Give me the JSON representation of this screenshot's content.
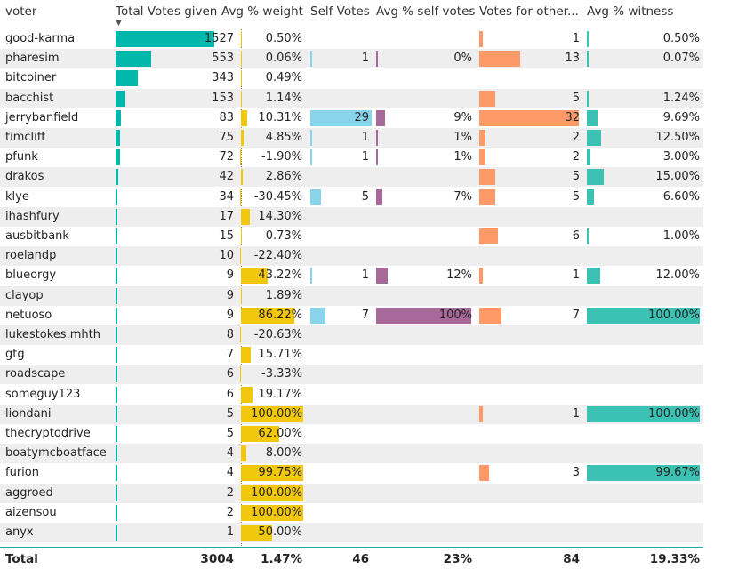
{
  "headers": [
    "voter",
    "Total Votes given",
    "Avg % weight",
    "Self Votes",
    "Avg % self votes",
    "Votes for other...",
    "Avg % witness"
  ],
  "sort_indicator": "▼",
  "colors": {
    "votes": "#01b8aa",
    "weight": "#f2c80f",
    "self": "#8ad4eb",
    "selfpct": "#a66999",
    "other": "#fd9a68",
    "witness": "#3cc1b5",
    "stripe": "#eeeeee",
    "total_line": "#1ea7a3"
  },
  "scales": {
    "votes_max": 1527,
    "weight_max": 100,
    "self_max": 29,
    "selfpct_max": 100,
    "other_max": 32,
    "witness_max": 100
  },
  "rows": [
    {
      "voter": "good-karma",
      "votes": "1527",
      "weight": "0.50%",
      "self": "",
      "selfpct": "",
      "other": "1",
      "witness": "0.50%",
      "v": {
        "votes": 1527,
        "weight": 0.5,
        "self": null,
        "selfpct": null,
        "other": 1,
        "witness": 0.5
      }
    },
    {
      "voter": "pharesim",
      "votes": "553",
      "weight": "0.06%",
      "self": "1",
      "selfpct": "0%",
      "other": "13",
      "witness": "0.07%",
      "v": {
        "votes": 553,
        "weight": 0.06,
        "self": 1,
        "selfpct": 0,
        "other": 13,
        "witness": 0.07
      }
    },
    {
      "voter": "bitcoiner",
      "votes": "343",
      "weight": "0.49%",
      "self": "",
      "selfpct": "",
      "other": "",
      "witness": "",
      "v": {
        "votes": 343,
        "weight": 0.49,
        "self": null,
        "selfpct": null,
        "other": null,
        "witness": null
      }
    },
    {
      "voter": "bacchist",
      "votes": "153",
      "weight": "1.14%",
      "self": "",
      "selfpct": "",
      "other": "5",
      "witness": "1.24%",
      "v": {
        "votes": 153,
        "weight": 1.14,
        "self": null,
        "selfpct": null,
        "other": 5,
        "witness": 1.24
      }
    },
    {
      "voter": "jerrybanfield",
      "votes": "83",
      "weight": "10.31%",
      "self": "29",
      "selfpct": "9%",
      "other": "32",
      "witness": "9.69%",
      "v": {
        "votes": 83,
        "weight": 10.31,
        "self": 29,
        "selfpct": 9,
        "other": 32,
        "witness": 9.69
      }
    },
    {
      "voter": "timcliff",
      "votes": "75",
      "weight": "4.85%",
      "self": "1",
      "selfpct": "1%",
      "other": "2",
      "witness": "12.50%",
      "v": {
        "votes": 75,
        "weight": 4.85,
        "self": 1,
        "selfpct": 1,
        "other": 2,
        "witness": 12.5
      }
    },
    {
      "voter": "pfunk",
      "votes": "72",
      "weight": "-1.90%",
      "self": "1",
      "selfpct": "1%",
      "other": "2",
      "witness": "3.00%",
      "v": {
        "votes": 72,
        "weight": -1.9,
        "self": 1,
        "selfpct": 1,
        "other": 2,
        "witness": 3.0
      }
    },
    {
      "voter": "drakos",
      "votes": "42",
      "weight": "2.86%",
      "self": "",
      "selfpct": "",
      "other": "5",
      "witness": "15.00%",
      "v": {
        "votes": 42,
        "weight": 2.86,
        "self": null,
        "selfpct": null,
        "other": 5,
        "witness": 15.0
      }
    },
    {
      "voter": "klye",
      "votes": "34",
      "weight": "-30.45%",
      "self": "5",
      "selfpct": "7%",
      "other": "5",
      "witness": "6.60%",
      "v": {
        "votes": 34,
        "weight": -30.45,
        "self": 5,
        "selfpct": 7,
        "other": 5,
        "witness": 6.6
      }
    },
    {
      "voter": "ihashfury",
      "votes": "17",
      "weight": "14.30%",
      "self": "",
      "selfpct": "",
      "other": "",
      "witness": "",
      "v": {
        "votes": 17,
        "weight": 14.3,
        "self": null,
        "selfpct": null,
        "other": null,
        "witness": null
      }
    },
    {
      "voter": "ausbitbank",
      "votes": "15",
      "weight": "0.73%",
      "self": "",
      "selfpct": "",
      "other": "6",
      "witness": "1.00%",
      "v": {
        "votes": 15,
        "weight": 0.73,
        "self": null,
        "selfpct": null,
        "other": 6,
        "witness": 1.0
      }
    },
    {
      "voter": "roelandp",
      "votes": "10",
      "weight": "-22.40%",
      "self": "",
      "selfpct": "",
      "other": "",
      "witness": "",
      "v": {
        "votes": 10,
        "weight": -22.4,
        "self": null,
        "selfpct": null,
        "other": null,
        "witness": null
      }
    },
    {
      "voter": "blueorgy",
      "votes": "9",
      "weight": "43.22%",
      "self": "1",
      "selfpct": "12%",
      "other": "1",
      "witness": "12.00%",
      "v": {
        "votes": 9,
        "weight": 43.22,
        "self": 1,
        "selfpct": 12,
        "other": 1,
        "witness": 12.0
      }
    },
    {
      "voter": "clayop",
      "votes": "9",
      "weight": "1.89%",
      "self": "",
      "selfpct": "",
      "other": "",
      "witness": "",
      "v": {
        "votes": 9,
        "weight": 1.89,
        "self": null,
        "selfpct": null,
        "other": null,
        "witness": null
      }
    },
    {
      "voter": "netuoso",
      "votes": "9",
      "weight": "86.22%",
      "self": "7",
      "selfpct": "100%",
      "other": "7",
      "witness": "100.00%",
      "v": {
        "votes": 9,
        "weight": 86.22,
        "self": 7,
        "selfpct": 100,
        "other": 7,
        "witness": 100.0
      }
    },
    {
      "voter": "lukestokes.mhth",
      "votes": "8",
      "weight": "-20.63%",
      "self": "",
      "selfpct": "",
      "other": "",
      "witness": "",
      "v": {
        "votes": 8,
        "weight": -20.63,
        "self": null,
        "selfpct": null,
        "other": null,
        "witness": null
      }
    },
    {
      "voter": "gtg",
      "votes": "7",
      "weight": "15.71%",
      "self": "",
      "selfpct": "",
      "other": "",
      "witness": "",
      "v": {
        "votes": 7,
        "weight": 15.71,
        "self": null,
        "selfpct": null,
        "other": null,
        "witness": null
      }
    },
    {
      "voter": "roadscape",
      "votes": "6",
      "weight": "-3.33%",
      "self": "",
      "selfpct": "",
      "other": "",
      "witness": "",
      "v": {
        "votes": 6,
        "weight": -3.33,
        "self": null,
        "selfpct": null,
        "other": null,
        "witness": null
      }
    },
    {
      "voter": "someguy123",
      "votes": "6",
      "weight": "19.17%",
      "self": "",
      "selfpct": "",
      "other": "",
      "witness": "",
      "v": {
        "votes": 6,
        "weight": 19.17,
        "self": null,
        "selfpct": null,
        "other": null,
        "witness": null
      }
    },
    {
      "voter": "liondani",
      "votes": "5",
      "weight": "100.00%",
      "self": "",
      "selfpct": "",
      "other": "1",
      "witness": "100.00%",
      "v": {
        "votes": 5,
        "weight": 100.0,
        "self": null,
        "selfpct": null,
        "other": 1,
        "witness": 100.0
      }
    },
    {
      "voter": "thecryptodrive",
      "votes": "5",
      "weight": "62.00%",
      "self": "",
      "selfpct": "",
      "other": "",
      "witness": "",
      "v": {
        "votes": 5,
        "weight": 62.0,
        "self": null,
        "selfpct": null,
        "other": null,
        "witness": null
      }
    },
    {
      "voter": "boatymcboatface",
      "votes": "4",
      "weight": "8.00%",
      "self": "",
      "selfpct": "",
      "other": "",
      "witness": "",
      "v": {
        "votes": 4,
        "weight": 8.0,
        "self": null,
        "selfpct": null,
        "other": null,
        "witness": null
      }
    },
    {
      "voter": "furion",
      "votes": "4",
      "weight": "99.75%",
      "self": "",
      "selfpct": "",
      "other": "3",
      "witness": "99.67%",
      "v": {
        "votes": 4,
        "weight": 99.75,
        "self": null,
        "selfpct": null,
        "other": 3,
        "witness": 99.67
      }
    },
    {
      "voter": "aggroed",
      "votes": "2",
      "weight": "100.00%",
      "self": "",
      "selfpct": "",
      "other": "",
      "witness": "",
      "v": {
        "votes": 2,
        "weight": 100.0,
        "self": null,
        "selfpct": null,
        "other": null,
        "witness": null
      }
    },
    {
      "voter": "aizensou",
      "votes": "2",
      "weight": "100.00%",
      "self": "",
      "selfpct": "",
      "other": "",
      "witness": "",
      "v": {
        "votes": 2,
        "weight": 100.0,
        "self": null,
        "selfpct": null,
        "other": null,
        "witness": null
      }
    },
    {
      "voter": "anyx",
      "votes": "1",
      "weight": "50.00%",
      "self": "",
      "selfpct": "",
      "other": "",
      "witness": "",
      "v": {
        "votes": 1,
        "weight": 50.0,
        "self": null,
        "selfpct": null,
        "other": null,
        "witness": null
      }
    }
  ],
  "totals": {
    "label": "Total",
    "votes": "3004",
    "weight": "1.47%",
    "self": "46",
    "selfpct": "23%",
    "other": "84",
    "witness": "19.33%"
  }
}
